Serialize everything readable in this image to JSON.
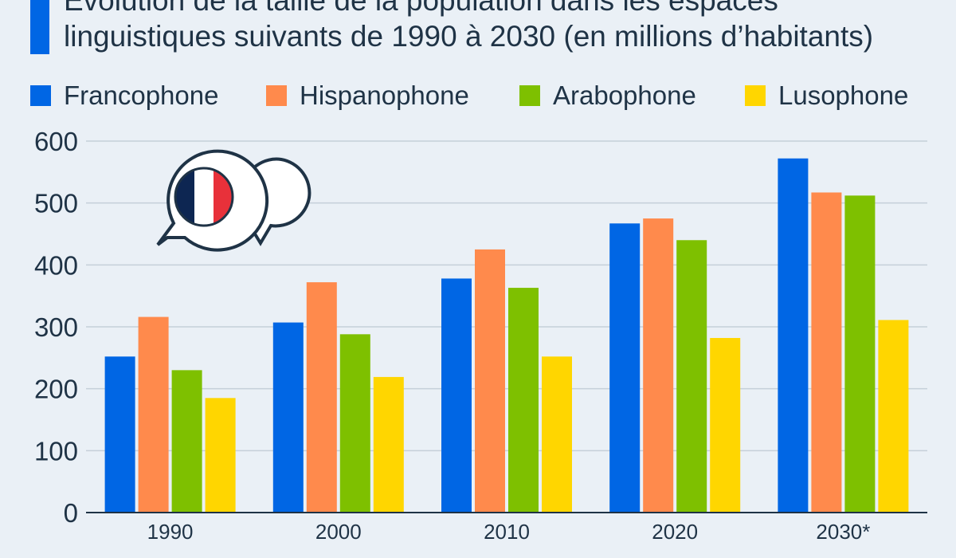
{
  "title": {
    "line1": "Évolution de la taille de la population dans les espaces",
    "line2": "linguistiques suivants de 1990 à 2030 (en millions d’habitants)"
  },
  "colors": {
    "accent": "#0066e4",
    "francophone": "#0066e4",
    "hispanophone": "#ff8a4c",
    "arabophone": "#7ec000",
    "lusophone": "#ffd600",
    "grid": "#c5cfd9",
    "axis": "#1f3346",
    "background": "#eaf0f6"
  },
  "icon": {
    "name": "speech-bubbles-french-flag-icon",
    "flag_colors": [
      "#0d2652",
      "#ffffff",
      "#e8313a"
    ]
  },
  "chart_data": {
    "type": "bar",
    "categories": [
      "1990",
      "2000",
      "2010",
      "2020",
      "2030*"
    ],
    "series": [
      {
        "name": "Francophone",
        "color": "#0066e4",
        "values": [
          252,
          307,
          378,
          467,
          572
        ]
      },
      {
        "name": "Hispanophone",
        "color": "#ff8a4c",
        "values": [
          316,
          372,
          425,
          475,
          517
        ]
      },
      {
        "name": "Arabophone",
        "color": "#7ec000",
        "values": [
          230,
          288,
          363,
          440,
          512
        ]
      },
      {
        "name": "Lusophone",
        "color": "#ffd600",
        "values": [
          185,
          219,
          252,
          282,
          311
        ]
      }
    ],
    "ylim": [
      0,
      600
    ],
    "yticks": [
      0,
      100,
      200,
      300,
      400,
      500,
      600
    ],
    "grid": true,
    "legend_position": "top",
    "xlabel": "",
    "ylabel": ""
  }
}
